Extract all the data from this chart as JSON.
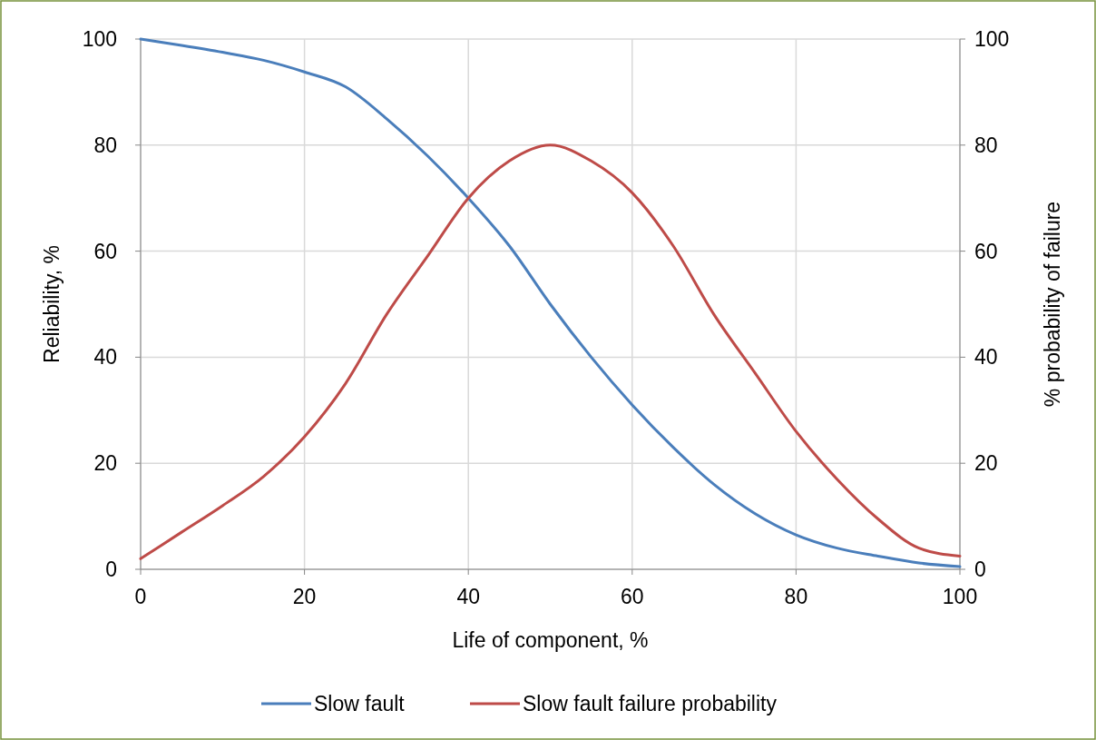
{
  "chart_data": {
    "type": "line",
    "xlabel": "Life of component, %",
    "ylabel": "Reliability, %",
    "y2label": "% probability of failure",
    "x": [
      0,
      5,
      10,
      15,
      20,
      25,
      30,
      35,
      40,
      45,
      50,
      55,
      60,
      65,
      70,
      75,
      80,
      85,
      90,
      95,
      100
    ],
    "xlim": [
      0,
      100
    ],
    "xticks": [
      0,
      20,
      40,
      60,
      80,
      100
    ],
    "ylim": [
      0,
      100
    ],
    "yticks": [
      0,
      20,
      40,
      60,
      80,
      100
    ],
    "y2lim": [
      0,
      100
    ],
    "y2ticks": [
      0,
      20,
      40,
      60,
      80,
      100
    ],
    "grid": true,
    "legend": "bottom",
    "marker": "none",
    "line_style": "solid",
    "series": [
      {
        "name": "Slow fault",
        "color": "#4a7ebb",
        "values": [
          100,
          98.8,
          97.5,
          96,
          93.8,
          91,
          85,
          78,
          70,
          61,
          50,
          40,
          31,
          23,
          16,
          10.5,
          6.5,
          4,
          2.5,
          1.2,
          0.5
        ]
      },
      {
        "name": "Slow fault failure probability",
        "color": "#be4b48",
        "axis": "y2",
        "values": [
          2,
          7,
          12,
          17.5,
          25,
          35,
          48,
          59,
          70,
          77,
          80,
          77,
          71,
          61,
          48,
          37,
          26,
          17,
          9.5,
          4,
          2.5
        ]
      }
    ]
  }
}
